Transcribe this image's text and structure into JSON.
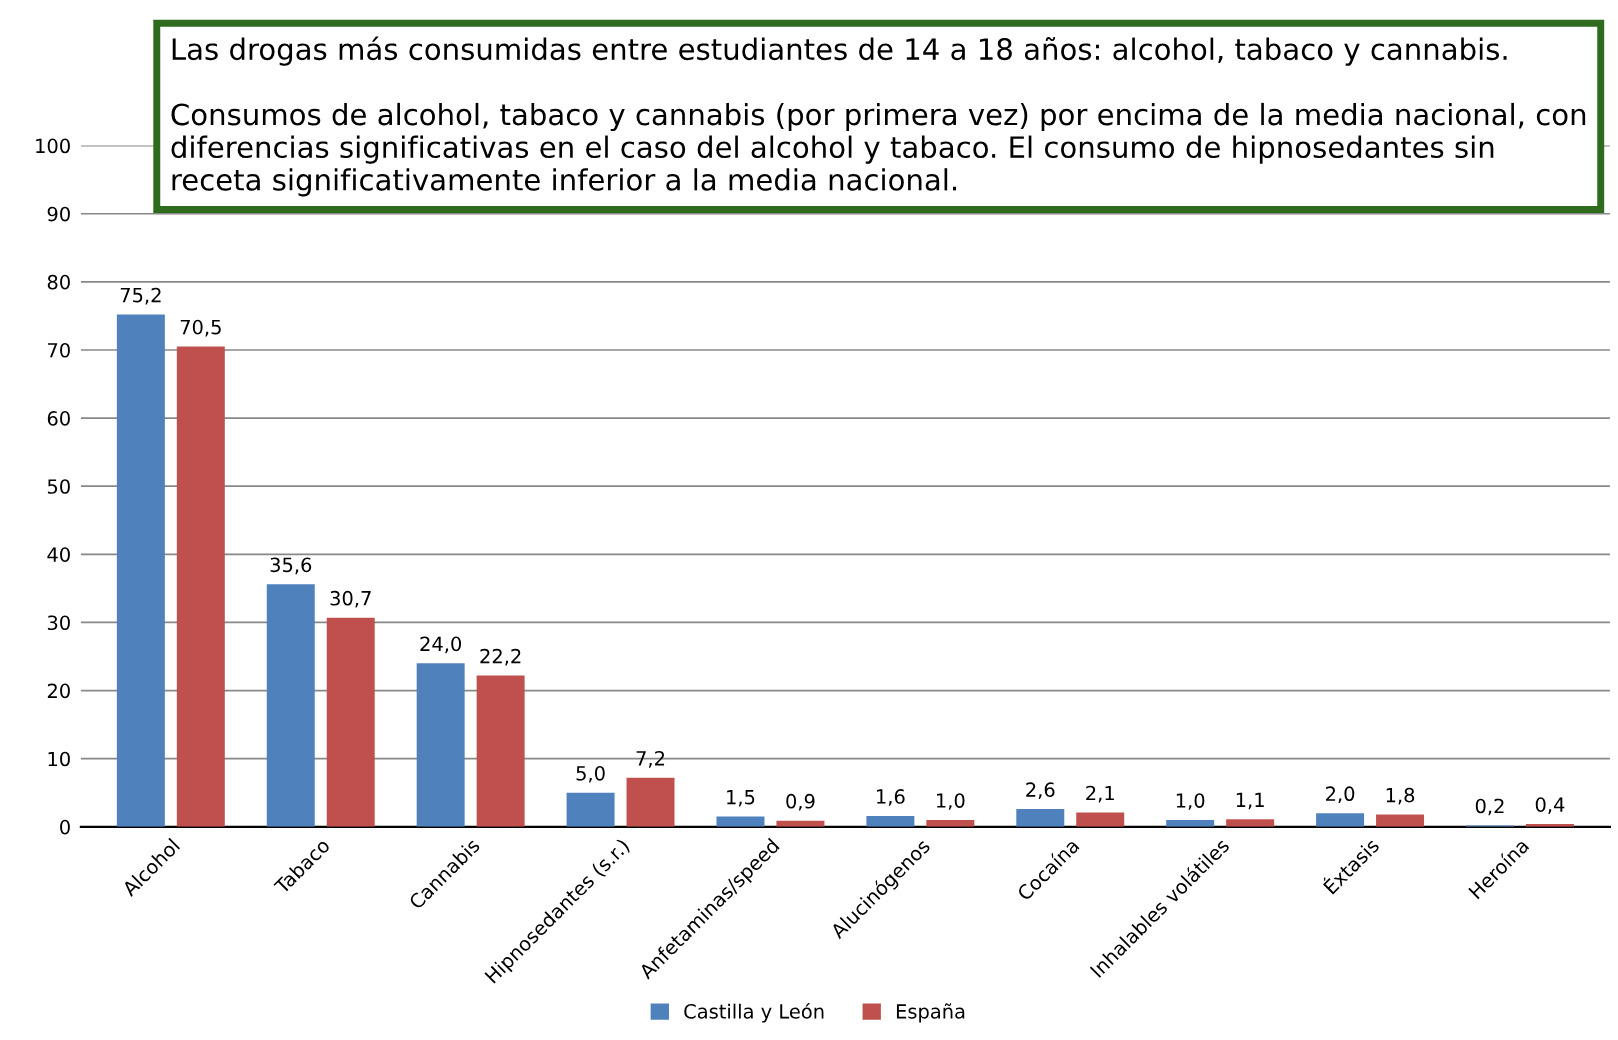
{
  "chart_data": {
    "type": "bar",
    "categories": [
      "Alcohol",
      "Tabaco",
      "Cannabis",
      "Hipnosedantes (s.r.)",
      "Anfetaminas/speed",
      "Alucinógenos",
      "Cocaína",
      "Inhalables volátiles",
      "Éxtasis",
      "Heroína"
    ],
    "series": [
      {
        "name": "Castilla y León",
        "color": "#4f81bd",
        "values": [
          75.2,
          35.6,
          24.0,
          5.0,
          1.5,
          1.6,
          2.6,
          1.0,
          2.0,
          0.2
        ],
        "value_labels": [
          "75,2",
          "35,6",
          "24,0",
          "5,0",
          "1,5",
          "1,6",
          "2,6",
          "1,0",
          "2,0",
          "0,2"
        ]
      },
      {
        "name": "España",
        "color": "#c0504d",
        "values": [
          70.5,
          30.7,
          22.2,
          7.2,
          0.9,
          1.0,
          2.1,
          1.1,
          1.8,
          0.4
        ],
        "value_labels": [
          "70,5",
          "30,7",
          "22,2",
          "7,2",
          "0,9",
          "1,0",
          "2,1",
          "1,1",
          "1,8",
          "0,4"
        ]
      }
    ],
    "ylim": [
      0,
      100
    ],
    "yticks": [
      0,
      10,
      20,
      30,
      40,
      50,
      60,
      70,
      80,
      90,
      100
    ],
    "grid": "y",
    "legend": "bottom",
    "annotations": [
      "Las drogas más consumidas entre estudiantes de 14 a 18 años: alcohol, tabaco y cannabis.",
      "Consumos de alcohol, tabaco y cannabis (por primera vez) por encima de la media nacional, con diferencias significativas en el caso del alcohol y tabaco. El consumo de hipnosedantes sin receta significativamente inferior a la media nacional."
    ]
  }
}
